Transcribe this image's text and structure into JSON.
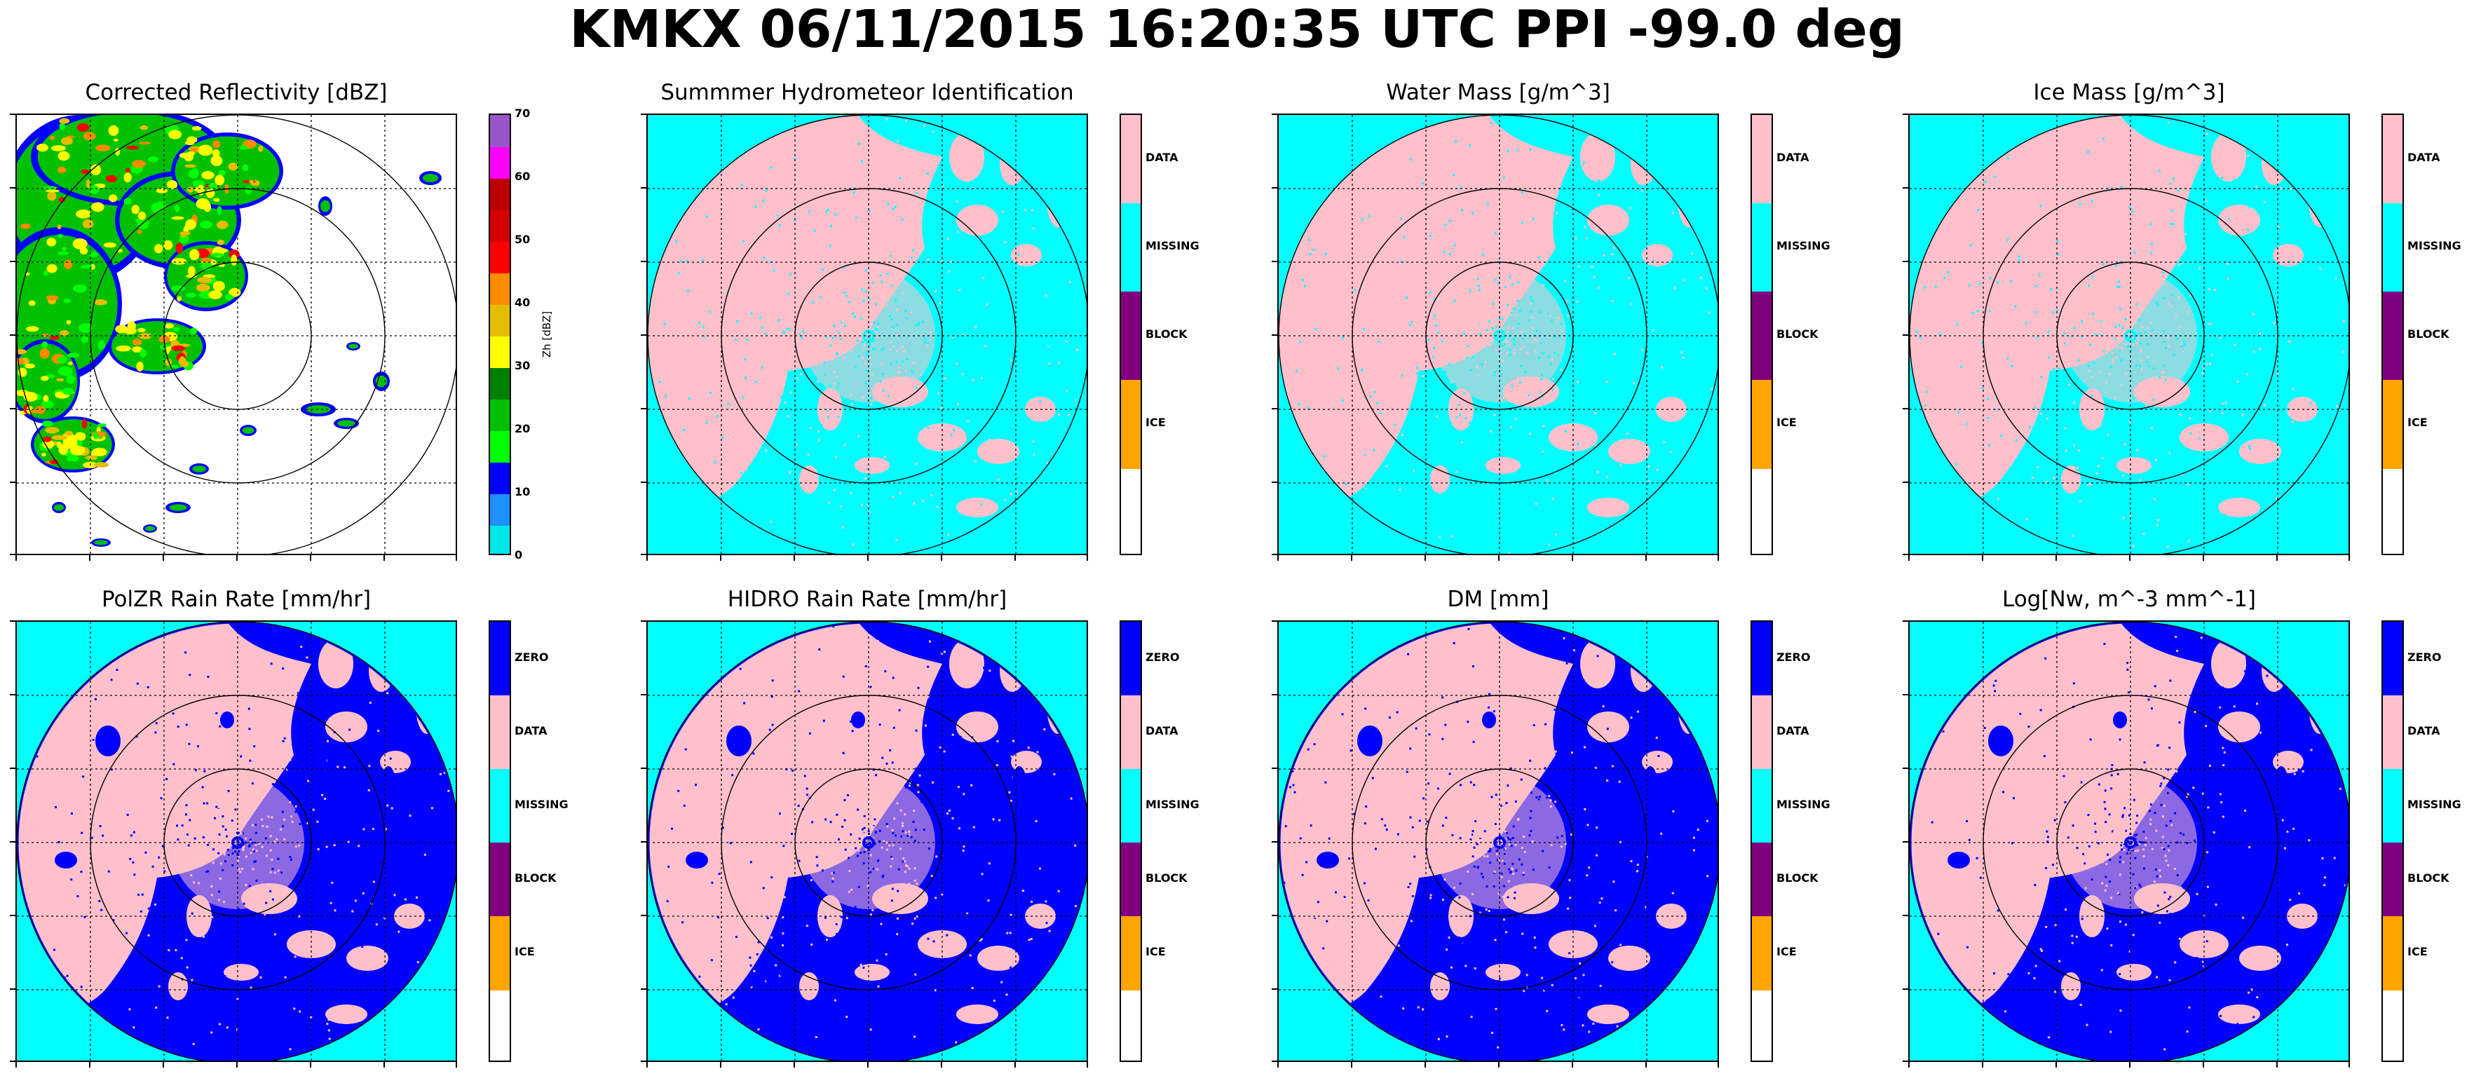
{
  "suptitle": "KMKX 06/11/2015 16:20:35 UTC PPI -99.0 deg",
  "colors": {
    "missing": "#00FFFF",
    "data": "#FFC0CB",
    "zero": "#0000FF",
    "block": "#800080",
    "ice": "#FFA500",
    "range_ring": "#000000"
  },
  "reflectivity_scale": {
    "label": "Zh [dBZ]",
    "ticks": [
      "0",
      "10",
      "20",
      "30",
      "40",
      "50",
      "60",
      "70"
    ],
    "colors": [
      "#00E5E5",
      "#1E90FF",
      "#0000FF",
      "#00FF00",
      "#00C000",
      "#008000",
      "#FFFF00",
      "#E5BC00",
      "#FF8C00",
      "#FF0000",
      "#D40000",
      "#BC0000",
      "#FF00FF",
      "#9955C9"
    ]
  },
  "panels": [
    {
      "title": "Corrected Reflectivity [dBZ]",
      "type": "reflectivity"
    },
    {
      "title": "Summmer Hydrometeor Identification",
      "type": "categorical",
      "cats": [
        "DATA",
        "MISSING",
        "BLOCK",
        "ICE"
      ]
    },
    {
      "title": "Water Mass [g/m^3]",
      "type": "categorical",
      "cats": [
        "DATA",
        "MISSING",
        "BLOCK",
        "ICE"
      ]
    },
    {
      "title": "Ice Mass [g/m^3]",
      "type": "categorical",
      "cats": [
        "DATA",
        "MISSING",
        "BLOCK",
        "ICE"
      ]
    },
    {
      "title": "PolZR Rain Rate [mm/hr]",
      "type": "categorical",
      "cats": [
        "ZERO",
        "DATA",
        "MISSING",
        "BLOCK",
        "ICE"
      ]
    },
    {
      "title": "HIDRO Rain Rate [mm/hr]",
      "type": "categorical",
      "cats": [
        "ZERO",
        "DATA",
        "MISSING",
        "BLOCK",
        "ICE"
      ]
    },
    {
      "title": "DM [mm]",
      "type": "categorical",
      "cats": [
        "ZERO",
        "DATA",
        "MISSING",
        "BLOCK",
        "ICE"
      ]
    },
    {
      "title": "Log[Nw, m^-3 mm^-1]",
      "type": "categorical",
      "cats": [
        "ZERO",
        "DATA",
        "MISSING",
        "BLOCK",
        "ICE"
      ]
    }
  ],
  "chart_data": {
    "type": "heatmap",
    "title": "KMKX 06/11/2015 16:20:35 UTC PPI -99.0 deg",
    "layout": "2 rows x 4 columns of PPI radar images",
    "grid": true,
    "range_rings": 3,
    "panels": [
      {
        "title": "Corrected Reflectivity [dBZ]",
        "colorbar_label": "Zh [dBZ]",
        "colorbar_ticks": [
          0,
          10,
          20,
          30,
          40,
          50,
          60,
          70
        ],
        "vmin": 0,
        "vmax": 70
      },
      {
        "title": "Summmer Hydrometeor Identification",
        "categories": [
          "DATA",
          "MISSING",
          "BLOCK",
          "ICE"
        ]
      },
      {
        "title": "Water Mass [g/m^3]",
        "categories": [
          "DATA",
          "MISSING",
          "BLOCK",
          "ICE"
        ]
      },
      {
        "title": "Ice Mass [g/m^3]",
        "categories": [
          "DATA",
          "MISSING",
          "BLOCK",
          "ICE"
        ]
      },
      {
        "title": "PolZR Rain Rate [mm/hr]",
        "categories": [
          "ZERO",
          "DATA",
          "MISSING",
          "BLOCK",
          "ICE"
        ]
      },
      {
        "title": "HIDRO Rain Rate [mm/hr]",
        "categories": [
          "ZERO",
          "DATA",
          "MISSING",
          "BLOCK",
          "ICE"
        ]
      },
      {
        "title": "DM [mm]",
        "categories": [
          "ZERO",
          "DATA",
          "MISSING",
          "BLOCK",
          "ICE"
        ]
      },
      {
        "title": "Log[Nw, m^-3 mm^-1]",
        "categories": [
          "ZERO",
          "DATA",
          "MISSING",
          "BLOCK",
          "ICE"
        ]
      }
    ]
  }
}
